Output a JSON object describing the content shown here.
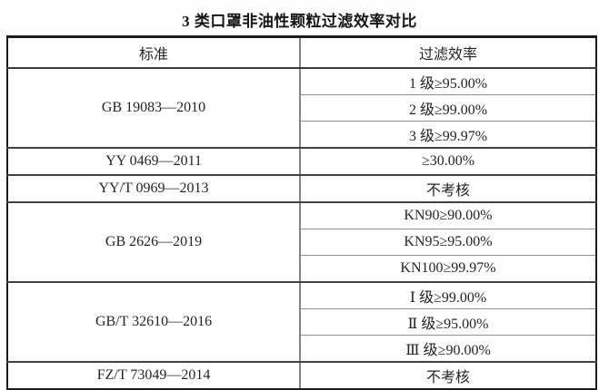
{
  "title": "3 类口罩非油性颗粒过滤效率对比",
  "table": {
    "headers": [
      "标准",
      "过滤效率"
    ],
    "groups": [
      {
        "standard": "GB 19083—2010",
        "efficiencies": [
          "1 级≥95.00%",
          "2 级≥99.00%",
          "3 级≥99.97%"
        ]
      },
      {
        "standard": "YY 0469—2011",
        "efficiencies": [
          "≥30.00%"
        ]
      },
      {
        "standard": "YY/T 0969—2013",
        "efficiencies": [
          "不考核"
        ]
      },
      {
        "standard": "GB 2626—2019",
        "efficiencies": [
          "KN90≥90.00%",
          "KN95≥95.00%",
          "KN100≥99.97%"
        ]
      },
      {
        "standard": "GB/T 32610—2016",
        "efficiencies": [
          "Ⅰ 级≥99.00%",
          "Ⅱ 级≥95.00%",
          "Ⅲ 级≥90.00%"
        ]
      },
      {
        "standard": "FZ/T 73049—2014",
        "efficiencies": [
          "不考核"
        ]
      }
    ]
  },
  "chart_data": {
    "type": "table",
    "title": "3 类口罩非油性颗粒过滤效率对比",
    "columns": [
      "标准",
      "过滤效率"
    ],
    "rows": [
      [
        "GB 19083—2010",
        "1 级≥95.00%"
      ],
      [
        "GB 19083—2010",
        "2 级≥99.00%"
      ],
      [
        "GB 19083—2010",
        "3 级≥99.97%"
      ],
      [
        "YY 0469—2011",
        "≥30.00%"
      ],
      [
        "YY/T 0969—2013",
        "不考核"
      ],
      [
        "GB 2626—2019",
        "KN90≥90.00%"
      ],
      [
        "GB 2626—2019",
        "KN95≥95.00%"
      ],
      [
        "GB 2626—2019",
        "KN100≥99.97%"
      ],
      [
        "GB/T 32610—2016",
        "Ⅰ 级≥99.00%"
      ],
      [
        "GB/T 32610—2016",
        "Ⅱ 级≥95.00%"
      ],
      [
        "GB/T 32610—2016",
        "Ⅲ 级≥90.00%"
      ],
      [
        "FZ/T 73049—2014",
        "不考核"
      ]
    ]
  }
}
